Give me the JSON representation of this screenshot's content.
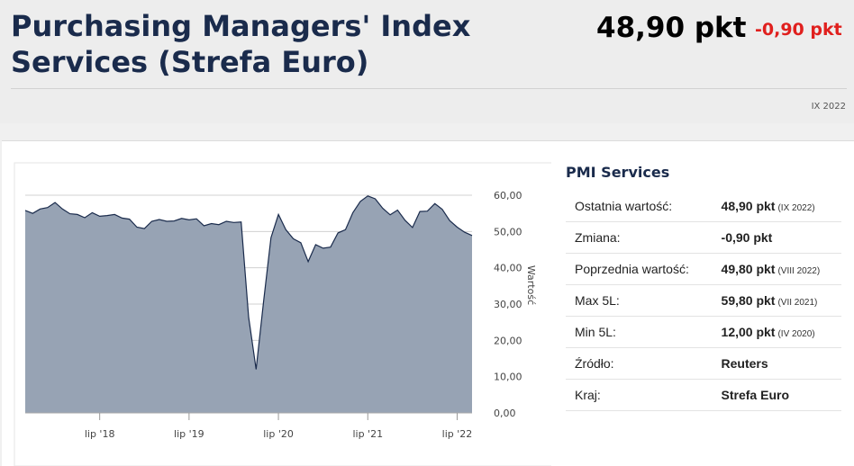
{
  "header": {
    "title": "Purchasing Managers' Index Services (Strefa Euro)",
    "value": "48,90 pkt",
    "change": "-0,90 pkt",
    "date": "IX 2022"
  },
  "sidebar": {
    "title": "PMI Services",
    "rows": [
      {
        "label": "Ostatnia wartość:",
        "value": "48,90 pkt",
        "period": "(IX 2022)"
      },
      {
        "label": "Zmiana:",
        "value": "-0,90 pkt",
        "period": ""
      },
      {
        "label": "Poprzednia wartość:",
        "value": "49,80 pkt",
        "period": "(VIII 2022)"
      },
      {
        "label": "Max 5L:",
        "value": "59,80 pkt",
        "period": "(VII 2021)"
      },
      {
        "label": "Min 5L:",
        "value": "12,00 pkt",
        "period": "(IV 2020)"
      },
      {
        "label": "Źródło:",
        "value": "Reuters",
        "period": ""
      },
      {
        "label": "Kraj:",
        "value": "Strefa Euro",
        "period": ""
      }
    ]
  },
  "chart_data": {
    "type": "area",
    "title": "",
    "ylabel": "Wartość",
    "ylim": [
      0,
      60
    ],
    "yticks": [
      "60,00",
      "50,00",
      "40,00",
      "30,00",
      "20,00",
      "10,00",
      "0,00"
    ],
    "yticks_values": [
      60,
      50,
      40,
      30,
      20,
      10,
      0
    ],
    "xticks": [
      "lip '18",
      "lip '19",
      "lip '20",
      "lip '21",
      "lip '22"
    ],
    "xticks_values": [
      "2018-07",
      "2019-07",
      "2020-07",
      "2021-07",
      "2022-07"
    ],
    "grid": true,
    "fill_color": "#97a3b4",
    "line_color": "#1a2b4c",
    "x": [
      "2017-09",
      "2017-10",
      "2017-11",
      "2017-12",
      "2018-01",
      "2018-02",
      "2018-03",
      "2018-04",
      "2018-05",
      "2018-06",
      "2018-07",
      "2018-08",
      "2018-09",
      "2018-10",
      "2018-11",
      "2018-12",
      "2019-01",
      "2019-02",
      "2019-03",
      "2019-04",
      "2019-05",
      "2019-06",
      "2019-07",
      "2019-08",
      "2019-09",
      "2019-10",
      "2019-11",
      "2019-12",
      "2020-01",
      "2020-02",
      "2020-03",
      "2020-04",
      "2020-05",
      "2020-06",
      "2020-07",
      "2020-08",
      "2020-09",
      "2020-10",
      "2020-11",
      "2020-12",
      "2021-01",
      "2021-02",
      "2021-03",
      "2021-04",
      "2021-05",
      "2021-06",
      "2021-07",
      "2021-08",
      "2021-09",
      "2021-10",
      "2021-11",
      "2021-12",
      "2022-01",
      "2022-02",
      "2022-03",
      "2022-04",
      "2022-05",
      "2022-06",
      "2022-07",
      "2022-08",
      "2022-09"
    ],
    "series": [
      {
        "values": [
          55.8,
          55.0,
          56.2,
          56.6,
          58.0,
          56.2,
          54.9,
          54.7,
          53.8,
          55.2,
          54.2,
          54.4,
          54.7,
          53.7,
          53.4,
          51.2,
          50.8,
          52.8,
          53.3,
          52.8,
          52.9,
          53.6,
          53.2,
          53.5,
          51.6,
          52.2,
          51.9,
          52.8,
          52.5,
          52.6,
          26.4,
          12.0,
          30.5,
          48.3,
          54.7,
          50.5,
          48.0,
          46.9,
          41.7,
          46.4,
          45.4,
          45.7,
          49.6,
          50.5,
          55.2,
          58.3,
          59.8,
          59.0,
          56.4,
          54.6,
          55.9,
          53.1,
          51.1,
          55.5,
          55.6,
          57.7,
          56.1,
          53.0,
          51.2,
          49.8,
          48.9
        ]
      }
    ]
  }
}
